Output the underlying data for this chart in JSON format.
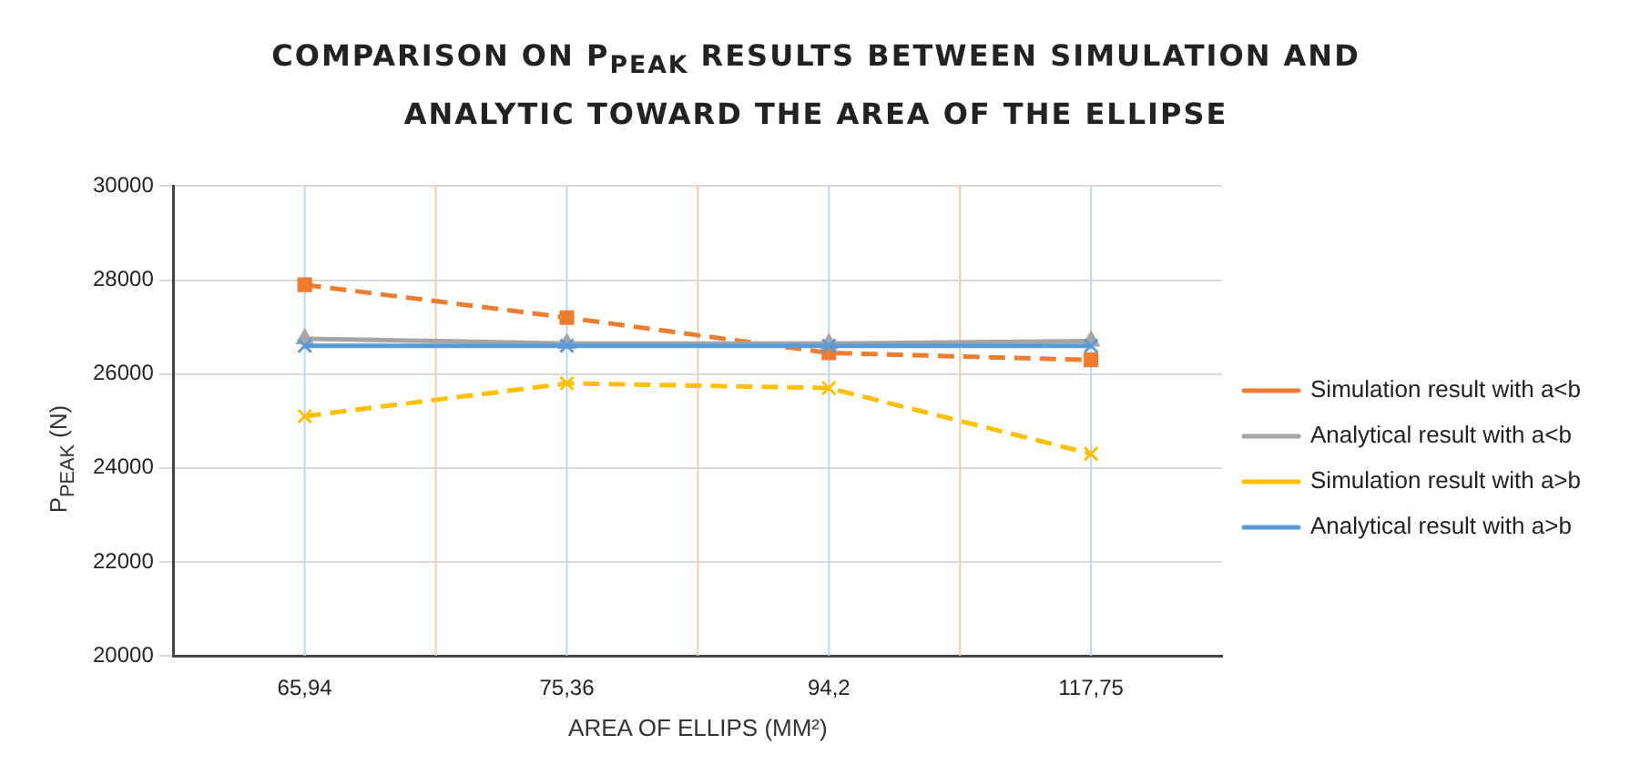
{
  "chart_data": {
    "type": "line",
    "title": "COMPARISON ON P$_{PEAK}$ RESULTS BETWEEN SIMULATION AND ANALYTIC TOWARD THE AREA OF THE ELLIPSE",
    "xlabel": "AREA OF ELLIPS (MM²)",
    "ylabel": "P$_{PEAK}$ (N)",
    "categories": [
      "65,94",
      "75,36",
      "94,2",
      "117,75"
    ],
    "series": [
      {
        "name": "Simulation result with a<b",
        "color": "#ed7d31",
        "marker": "square",
        "line_style": "dashed",
        "values": [
          27900,
          27200,
          26450,
          26300
        ]
      },
      {
        "name": "Analytical result with a<b",
        "color": "#a5a5a5",
        "marker": "triangle",
        "line_style": "solid",
        "values": [
          26750,
          26650,
          26650,
          26700
        ]
      },
      {
        "name": "Simulation result with a>b",
        "color": "#ffc000",
        "marker": "cross",
        "line_style": "dashed",
        "values": [
          25100,
          25800,
          25700,
          24300
        ]
      },
      {
        "name": "Analytical result with a>b",
        "color": "#5b9bd5",
        "marker": "cross",
        "line_style": "solid",
        "values": [
          26600,
          26600,
          26600,
          26600
        ]
      }
    ],
    "ylim": [
      20000,
      30000
    ],
    "yticks": [
      20000,
      22000,
      24000,
      26000,
      28000,
      30000
    ],
    "grid": true,
    "legend": "right"
  }
}
